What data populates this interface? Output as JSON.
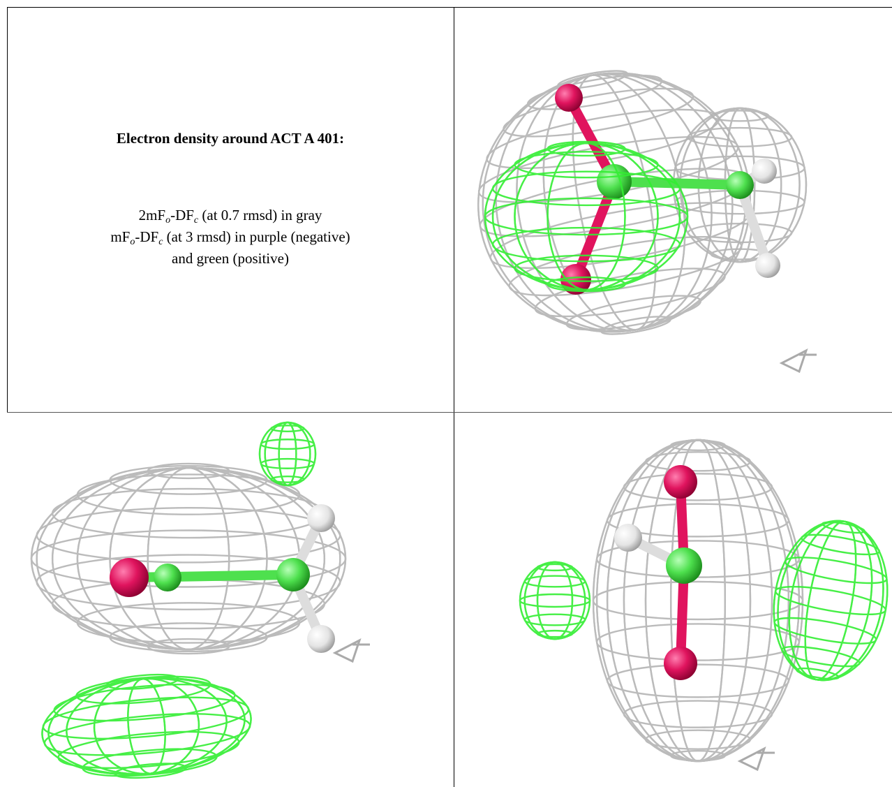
{
  "caption": {
    "title": "Electron density around ACT A 401:",
    "lines": [
      [
        "2mF",
        "o",
        "-DF",
        "c",
        " (at 0.7 rmsd) in gray"
      ],
      [
        "mF",
        "o",
        "-DF",
        "c",
        " (at 3 rmsd) in purple (negative)"
      ],
      [
        "and green (positive)"
      ]
    ]
  }
}
